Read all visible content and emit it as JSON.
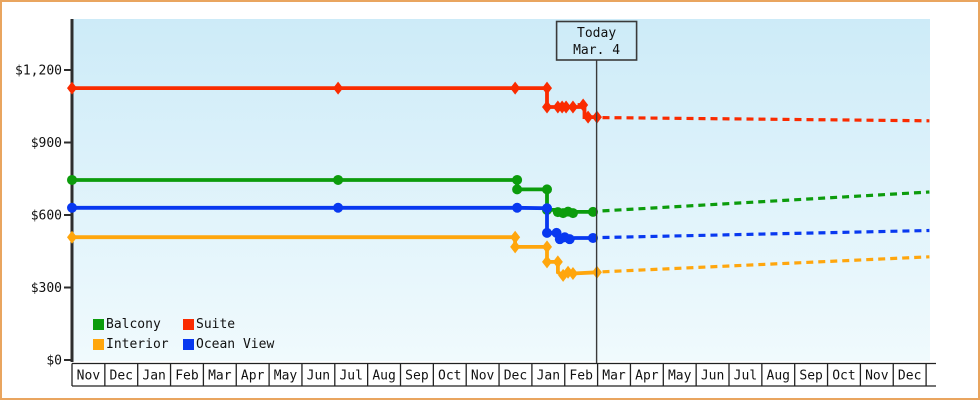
{
  "chart_data": {
    "type": "line",
    "months": [
      "Nov",
      "Dec",
      "Jan",
      "Feb",
      "Mar",
      "Apr",
      "May",
      "Jun",
      "Jul",
      "Aug",
      "Sep",
      "Oct",
      "Nov",
      "Dec",
      "Jan",
      "Feb",
      "Mar",
      "Apr",
      "May",
      "Jun",
      "Jul",
      "Aug",
      "Sep",
      "Oct",
      "Nov",
      "Dec"
    ],
    "y_ticks": [
      {
        "label": "$0",
        "value": 0
      },
      {
        "label": "$300",
        "value": 300
      },
      {
        "label": "$600",
        "value": 600
      },
      {
        "label": "$900",
        "value": 900
      },
      {
        "label": "$1,200",
        "value": 1200
      }
    ],
    "ylim": [
      0,
      1410
    ],
    "x_months": 26,
    "grid": false,
    "today": {
      "x": 15.97,
      "lines": [
        "Today",
        "Mar. 4"
      ]
    },
    "series": [
      {
        "name": "Balcony",
        "color": "#0c9c0c",
        "marker": "circle",
        "solid": [
          [
            0,
            745
          ],
          [
            13.55,
            745
          ],
          [
            13.55,
            706
          ],
          [
            14.46,
            706
          ],
          [
            14.46,
            621
          ],
          [
            14.75,
            621
          ],
          [
            14.85,
            608
          ],
          [
            15.0,
            614
          ],
          [
            15.15,
            608
          ],
          [
            15.3,
            613
          ],
          [
            15.86,
            613
          ]
        ],
        "markers": [
          [
            0,
            745
          ],
          [
            8.1,
            745
          ],
          [
            13.55,
            745
          ],
          [
            13.55,
            706
          ],
          [
            14.46,
            706
          ],
          [
            14.46,
            621
          ],
          [
            14.79,
            612
          ],
          [
            14.95,
            608
          ],
          [
            15.1,
            614
          ],
          [
            15.25,
            608
          ],
          [
            15.86,
            613
          ]
        ],
        "dashed": [
          [
            16.15,
            617
          ],
          [
            26.1,
            695
          ]
        ]
      },
      {
        "name": "Suite",
        "color": "#fa2b00",
        "marker": "diamond",
        "solid": [
          [
            0,
            1125
          ],
          [
            14.46,
            1125
          ],
          [
            14.46,
            1047
          ],
          [
            15.45,
            1047
          ],
          [
            15.45,
            1055
          ],
          [
            15.6,
            1055
          ],
          [
            15.6,
            1005
          ],
          [
            15.98,
            1005
          ]
        ],
        "markers": [
          [
            0,
            1125
          ],
          [
            8.1,
            1125
          ],
          [
            13.49,
            1125
          ],
          [
            14.46,
            1125
          ],
          [
            14.46,
            1047
          ],
          [
            14.79,
            1047
          ],
          [
            14.92,
            1047
          ],
          [
            15.04,
            1047
          ],
          [
            15.25,
            1047
          ],
          [
            15.56,
            1055
          ],
          [
            15.71,
            1005
          ],
          [
            15.98,
            1005
          ]
        ],
        "dashed": [
          [
            16.15,
            1003
          ],
          [
            26.1,
            990
          ]
        ]
      },
      {
        "name": "Interior",
        "color": "#ffa60d",
        "marker": "diamond",
        "solid": [
          [
            0,
            508
          ],
          [
            13.49,
            508
          ],
          [
            13.49,
            468
          ],
          [
            14.46,
            468
          ],
          [
            14.46,
            406
          ],
          [
            14.79,
            406
          ],
          [
            14.79,
            363
          ],
          [
            14.95,
            350
          ],
          [
            15.1,
            363
          ],
          [
            15.25,
            358
          ],
          [
            15.98,
            363
          ]
        ],
        "markers": [
          [
            0,
            508
          ],
          [
            13.49,
            508
          ],
          [
            13.49,
            468
          ],
          [
            14.46,
            468
          ],
          [
            14.46,
            406
          ],
          [
            14.79,
            406
          ],
          [
            14.95,
            350
          ],
          [
            15.1,
            363
          ],
          [
            15.25,
            358
          ],
          [
            15.98,
            363
          ]
        ],
        "dashed": [
          [
            16.15,
            365
          ],
          [
            26.1,
            427
          ]
        ]
      },
      {
        "name": "Ocean View",
        "color": "#0838f0",
        "marker": "circle",
        "solid": [
          [
            0,
            630
          ],
          [
            13.55,
            630
          ],
          [
            14.46,
            628
          ],
          [
            14.46,
            526
          ],
          [
            14.75,
            526
          ],
          [
            14.85,
            500
          ],
          [
            15.0,
            508
          ],
          [
            15.15,
            500
          ],
          [
            15.3,
            505
          ],
          [
            15.86,
            505
          ]
        ],
        "markers": [
          [
            0,
            630
          ],
          [
            8.1,
            630
          ],
          [
            13.55,
            630
          ],
          [
            14.46,
            628
          ],
          [
            14.46,
            526
          ],
          [
            14.75,
            526
          ],
          [
            14.85,
            500
          ],
          [
            15.0,
            508
          ],
          [
            15.15,
            500
          ],
          [
            15.86,
            505
          ]
        ],
        "dashed": [
          [
            16.15,
            507
          ],
          [
            26.1,
            536
          ]
        ]
      }
    ],
    "legend": {
      "position": "bottom-left",
      "order": [
        "Balcony",
        "Suite",
        "Interior",
        "Ocean View"
      ]
    },
    "colors": {
      "frame_border": "#e9a55f",
      "axis": "#2e2e2e",
      "plot_bg_top": "#cdebf8",
      "plot_bg_bottom": "#f0fafd",
      "today_line": "#3a3a3a"
    }
  }
}
